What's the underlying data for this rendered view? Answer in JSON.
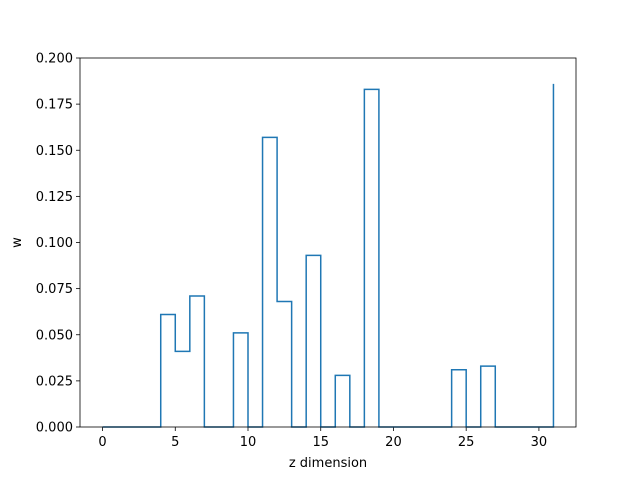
{
  "chart_data": {
    "type": "line",
    "style": "step-post",
    "xlabel": "z dimension",
    "ylabel": "w",
    "xlim": [
      -1.55,
      32.55
    ],
    "ylim": [
      0,
      0.2
    ],
    "xticks": [
      0,
      5,
      10,
      15,
      20,
      25,
      30
    ],
    "yticks": [
      0.0,
      0.025,
      0.05,
      0.075,
      0.1,
      0.125,
      0.15,
      0.175,
      0.2
    ],
    "grid": false,
    "color": "#1f77b4",
    "series": [
      {
        "x": [
          0,
          1,
          2,
          3,
          4,
          5,
          6,
          7,
          8,
          9,
          10,
          11,
          12,
          13,
          14,
          15,
          16,
          17,
          18,
          19,
          20,
          21,
          22,
          23,
          24,
          25,
          26,
          27,
          28,
          29,
          30,
          31
        ],
        "values": [
          0,
          0,
          0,
          0,
          0.061,
          0.041,
          0.071,
          0,
          0,
          0.051,
          0,
          0.157,
          0.068,
          0,
          0.093,
          0,
          0.028,
          0,
          0.183,
          0,
          0,
          0,
          0,
          0,
          0.031,
          0,
          0.033,
          0,
          0,
          0,
          0,
          0.186
        ]
      }
    ]
  }
}
